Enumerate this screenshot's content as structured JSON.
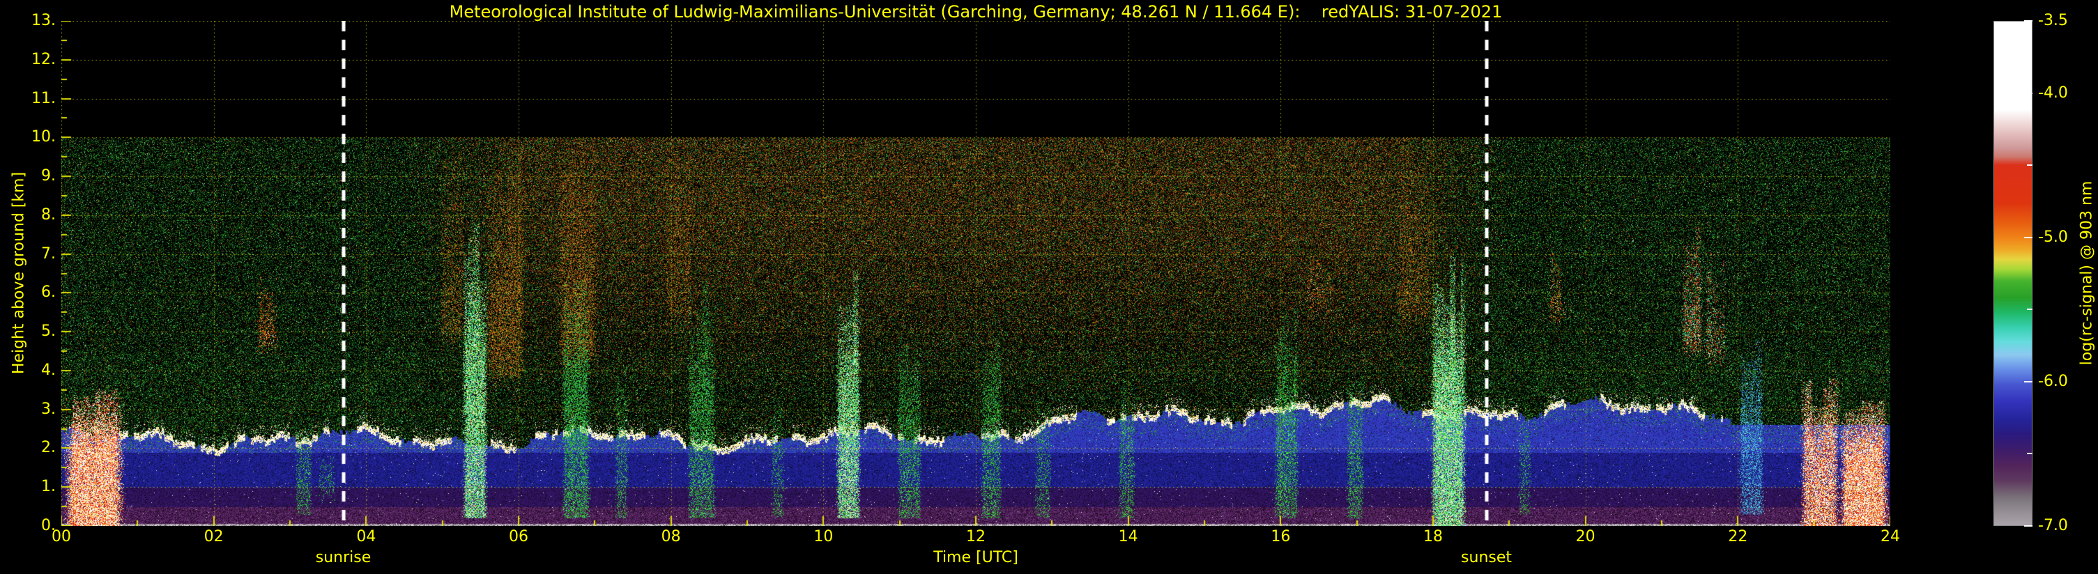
{
  "figure": {
    "kind": "lidar time-height quicklook",
    "background": "#000000",
    "text_color": "#ffff00",
    "grid_color": "#d6d600",
    "sun_line_color": "#ffffff"
  },
  "chart_data": {
    "type": "heatmap",
    "title": "Meteorological Institute of Ludwig-Maximilians-Universität (Garching, Germany; 48.261 N / 11.664 E):    redYALIS: 31-07-2021",
    "instrument": "redYALIS",
    "date": "31-07-2021",
    "site": "Garching, Germany; 48.261 N / 11.664 E",
    "xlabel": "Time [UTC]",
    "ylabel": "Height above ground [km]",
    "xlim": [
      0,
      24
    ],
    "ylim": [
      0,
      13
    ],
    "data_extent": {
      "time_utc_hours": [
        0,
        24
      ],
      "height_km": [
        0,
        10
      ]
    },
    "x_ticks": {
      "major_interval_hours": 2,
      "labels": [
        "00",
        "02",
        "04",
        "06",
        "08",
        "10",
        "12",
        "14",
        "16",
        "18",
        "20",
        "22",
        "24"
      ]
    },
    "y_ticks": {
      "major_interval_km": 1,
      "labels": [
        "0.",
        "1.",
        "2.",
        "3.",
        "4.",
        "5.",
        "6.",
        "7.",
        "8.",
        "9.",
        "10.",
        "11.",
        "12.",
        "13."
      ]
    },
    "grid": {
      "style": "dotted",
      "on": true
    },
    "annotations": [
      {
        "type": "vline",
        "label": "sunrise",
        "x_utc": 3.7,
        "style": "white dashed"
      },
      {
        "type": "vline",
        "label": "sunset",
        "x_utc": 18.7,
        "style": "white dashed"
      }
    ],
    "colorbar": {
      "label": "log(rc-signal) @ 903 nm",
      "range": [
        -7.0,
        -3.5
      ],
      "tick_values": [
        -3.5,
        -4.0,
        -5.0,
        -6.0,
        -7.0
      ],
      "tick_labels": [
        "-3.5",
        "-4.0",
        "-5.0",
        "-6.0",
        "-7.0"
      ],
      "minor_tick_values": [
        -4.5,
        -5.5,
        -6.5
      ],
      "stops": [
        [
          0.0,
          "#ffffff"
        ],
        [
          0.175,
          "#ffffff"
        ],
        [
          0.2,
          "#f2dcdc"
        ],
        [
          0.225,
          "#e2baba"
        ],
        [
          0.25,
          "#d09a9a"
        ],
        [
          0.268,
          "#cc7a72"
        ],
        [
          0.285,
          "#dc3018"
        ],
        [
          0.36,
          "#de3410"
        ],
        [
          0.4,
          "#e85e10"
        ],
        [
          0.43,
          "#f08418"
        ],
        [
          0.455,
          "#eead28"
        ],
        [
          0.472,
          "#e6d640"
        ],
        [
          0.492,
          "#a6d838"
        ],
        [
          0.515,
          "#46b42e"
        ],
        [
          0.548,
          "#28a028"
        ],
        [
          0.578,
          "#1fb868"
        ],
        [
          0.608,
          "#38d0b0"
        ],
        [
          0.635,
          "#64dcdc"
        ],
        [
          0.662,
          "#8cc8f0"
        ],
        [
          0.69,
          "#6890e8"
        ],
        [
          0.72,
          "#4858d0"
        ],
        [
          0.755,
          "#3232bc"
        ],
        [
          0.79,
          "#24249a"
        ],
        [
          0.82,
          "#2a1a7e"
        ],
        [
          0.852,
          "#3e1c6a"
        ],
        [
          0.882,
          "#52245c"
        ],
        [
          0.912,
          "#5e3a5e"
        ],
        [
          0.945,
          "#7a727a"
        ],
        [
          0.975,
          "#969096"
        ],
        [
          1.0,
          "#aaa2aa"
        ]
      ]
    },
    "boundary_layer": {
      "night_top_km": 2.25,
      "day_top_km": 3.0,
      "growth_window_utc": [
        10.0,
        16.5
      ],
      "top_edge": "bright white/yellow aerosol line"
    },
    "features": [
      "Aerosol-laden boundary layer below ~2-3 km with bright white top edge through most of the day",
      "Very strong low-level echoes (white/red, clouds/precipitation) below ~3.5 km near 00:00-00:50 and 22:50-24:00 UTC",
      "Green/cyan convective and cloud streaks between ~05:00 and ~18:30 UTC reaching 4-7 km",
      "Bright cloud/precipitation column around 18:00-18:30 UTC up to ~6 km",
      "Enhanced daytime solar background noise (orange/brown speckle) in the free troposphere between sunrise and sunset",
      "Mid-level cloud wisps near 02:40 (~5 km), 16:30 (~6 km) and 21:20-21:50 UTC (4-7 km)",
      "No data displayed above 10 km (black region up to 13 km axis limit)"
    ],
    "render": {
      "events": [
        {
          "t": [
            0.0,
            0.85
          ],
          "h": [
            0.0,
            3.1
          ],
          "kind": "strong_echo",
          "i": 1.0
        },
        {
          "t": [
            22.8,
            23.35
          ],
          "h": [
            0.0,
            3.6
          ],
          "kind": "strong_echo",
          "i": 0.85
        },
        {
          "t": [
            23.3,
            24.0
          ],
          "h": [
            0.0,
            3.4
          ],
          "kind": "strong_echo",
          "i": 1.0
        },
        {
          "t": [
            3.05,
            3.3
          ],
          "h": [
            0.3,
            2.4
          ],
          "kind": "green_column",
          "i": 0.5
        },
        {
          "t": [
            3.35,
            3.6
          ],
          "h": [
            0.5,
            2.0
          ],
          "kind": "green_column",
          "i": 0.45
        },
        {
          "t": [
            5.25,
            5.6
          ],
          "h": [
            0.2,
            7.0
          ],
          "kind": "bright_column",
          "i": 0.9
        },
        {
          "t": [
            6.55,
            6.95
          ],
          "h": [
            0.2,
            6.0
          ],
          "kind": "green_column",
          "i": 0.8
        },
        {
          "t": [
            7.25,
            7.45
          ],
          "h": [
            0.2,
            4.0
          ],
          "kind": "green_column",
          "i": 0.5
        },
        {
          "t": [
            8.2,
            8.6
          ],
          "h": [
            0.2,
            5.5
          ],
          "kind": "green_column",
          "i": 0.7
        },
        {
          "t": [
            9.3,
            9.5
          ],
          "h": [
            0.2,
            3.0
          ],
          "kind": "green_column",
          "i": 0.4
        },
        {
          "t": [
            10.15,
            10.5
          ],
          "h": [
            0.2,
            6.0
          ],
          "kind": "bright_column",
          "i": 0.85
        },
        {
          "t": [
            10.95,
            11.3
          ],
          "h": [
            0.2,
            4.5
          ],
          "kind": "green_column",
          "i": 0.6
        },
        {
          "t": [
            12.05,
            12.35
          ],
          "h": [
            0.2,
            4.5
          ],
          "kind": "green_column",
          "i": 0.6
        },
        {
          "t": [
            12.75,
            13.0
          ],
          "h": [
            0.2,
            3.0
          ],
          "kind": "green_column",
          "i": 0.4
        },
        {
          "t": [
            13.85,
            14.1
          ],
          "h": [
            0.2,
            3.5
          ],
          "kind": "green_column",
          "i": 0.5
        },
        {
          "t": [
            15.9,
            16.25
          ],
          "h": [
            0.2,
            5.0
          ],
          "kind": "green_column",
          "i": 0.7
        },
        {
          "t": [
            16.85,
            17.1
          ],
          "h": [
            0.2,
            4.0
          ],
          "kind": "green_column",
          "i": 0.6
        },
        {
          "t": [
            17.95,
            18.45
          ],
          "h": [
            0.0,
            6.2
          ],
          "kind": "bright_column",
          "i": 1.0
        },
        {
          "t": [
            19.1,
            19.3
          ],
          "h": [
            0.3,
            3.0
          ],
          "kind": "green_column",
          "i": 0.4
        },
        {
          "t": [
            22.0,
            22.35
          ],
          "h": [
            0.3,
            4.2
          ],
          "kind": "cyan_column",
          "i": 0.7
        },
        {
          "t": [
            4.95,
            5.3
          ],
          "h": [
            4.5,
            10.0
          ],
          "kind": "orange_column",
          "i": 0.5
        },
        {
          "t": [
            5.55,
            6.1
          ],
          "h": [
            3.5,
            10.0
          ],
          "kind": "orange_column",
          "i": 0.8
        },
        {
          "t": [
            6.5,
            7.05
          ],
          "h": [
            4.0,
            10.0
          ],
          "kind": "orange_column",
          "i": 0.7
        },
        {
          "t": [
            7.9,
            8.3
          ],
          "h": [
            5.0,
            10.0
          ],
          "kind": "orange_column",
          "i": 0.4
        },
        {
          "t": [
            17.5,
            18.0
          ],
          "h": [
            5.0,
            10.0
          ],
          "kind": "orange_column",
          "i": 0.5
        },
        {
          "t": [
            2.55,
            2.85
          ],
          "h": [
            4.3,
            5.6
          ],
          "kind": "warm_wisp",
          "i": 0.7
        },
        {
          "t": [
            16.3,
            16.7
          ],
          "h": [
            5.3,
            6.6
          ],
          "kind": "warm_wisp",
          "i": 0.6
        },
        {
          "t": [
            19.4,
            19.75
          ],
          "h": [
            5.0,
            6.3
          ],
          "kind": "warm_wisp",
          "i": 0.5
        },
        {
          "t": [
            21.25,
            21.55
          ],
          "h": [
            4.2,
            7.0
          ],
          "kind": "mixed_red",
          "i": 0.8
        },
        {
          "t": [
            21.55,
            21.85
          ],
          "h": [
            4.0,
            6.3
          ],
          "kind": "mixed_red",
          "i": 0.7
        }
      ],
      "palettes": {
        "green_speckle": [
          [
            0.34,
            "#0b370b"
          ],
          [
            0.26,
            "#145214"
          ],
          [
            0.18,
            "#1d701d"
          ],
          [
            0.12,
            "#2a962a"
          ],
          [
            0.07,
            "#3fc43f"
          ],
          [
            0.03,
            "#7dec7d"
          ]
        ],
        "warm_speckle": [
          [
            0.3,
            "#381a06"
          ],
          [
            0.25,
            "#5e2c0a"
          ],
          [
            0.2,
            "#8a4410"
          ],
          [
            0.14,
            "#b46418"
          ],
          [
            0.07,
            "#d88820"
          ],
          [
            0.04,
            "#e04010"
          ]
        ],
        "bright_column": [
          [
            0.22,
            "#34cc34"
          ],
          [
            0.18,
            "#64e464"
          ],
          [
            0.2,
            "#3cd4c4"
          ],
          [
            0.1,
            "#ffffff"
          ],
          [
            0.14,
            "#bcf4bc"
          ],
          [
            0.16,
            "#e8e87c"
          ]
        ],
        "green_column": [
          [
            0.3,
            "#1e9a1e"
          ],
          [
            0.22,
            "#2cba2c"
          ],
          [
            0.18,
            "#44d444"
          ],
          [
            0.12,
            "#68e468"
          ],
          [
            0.1,
            "#2cb486"
          ],
          [
            0.08,
            "#44ccc0"
          ]
        ],
        "cyan_column": [
          [
            0.25,
            "#38a8d0"
          ],
          [
            0.22,
            "#50c8e0"
          ],
          [
            0.18,
            "#2878c8"
          ],
          [
            0.18,
            "#68e0e0"
          ],
          [
            0.17,
            "#3048c0"
          ]
        ],
        "orange_column": [
          [
            0.3,
            "#904c10"
          ],
          [
            0.25,
            "#b86a16"
          ],
          [
            0.2,
            "#d8881e"
          ],
          [
            0.15,
            "#eca62c"
          ],
          [
            0.1,
            "#743408"
          ]
        ],
        "warm_wisp": [
          [
            0.3,
            "#d84c10"
          ],
          [
            0.25,
            "#ec7418"
          ],
          [
            0.2,
            "#f89c28"
          ],
          [
            0.15,
            "#b02c08"
          ],
          [
            0.1,
            "#ffffff"
          ]
        ],
        "strong_echo": [
          [
            0.28,
            "#ffffff"
          ],
          [
            0.12,
            "#ffe8c0"
          ],
          [
            0.24,
            "#dc2810"
          ],
          [
            0.14,
            "#ff5420"
          ],
          [
            0.12,
            "#ffcc40"
          ],
          [
            0.1,
            "#f4f49c"
          ]
        ],
        "mixed_red": [
          [
            0.33,
            "#dc3018"
          ],
          [
            0.15,
            "#ff6030"
          ],
          [
            0.2,
            "#30b850"
          ],
          [
            0.14,
            "#44d0c4"
          ],
          [
            0.09,
            "#ffffff"
          ],
          [
            0.09,
            "#ecdc5c"
          ]
        ],
        "bl_top_line": [
          [
            0.5,
            "#ffffff"
          ],
          [
            0.2,
            "#ffffc4"
          ],
          [
            0.15,
            "#fce470"
          ],
          [
            0.08,
            "#fcc044"
          ],
          [
            0.07,
            "#e8e8e8"
          ]
        ],
        "ground_gray": [
          [
            0.3,
            "#b4acb4"
          ],
          [
            0.3,
            "#d4ccd4"
          ],
          [
            0.2,
            "#8c808c"
          ],
          [
            0.2,
            "#645c64"
          ]
        ],
        "purple_low": [
          [
            0.25,
            "#481a54"
          ],
          [
            0.25,
            "#5a2866"
          ],
          [
            0.2,
            "#381040"
          ],
          [
            0.2,
            "#6c3878"
          ],
          [
            0.1,
            "#280828"
          ]
        ],
        "purple_mid": [
          [
            0.3,
            "#32105e"
          ],
          [
            0.3,
            "#3a1a6e"
          ],
          [
            0.2,
            "#281254"
          ],
          [
            0.2,
            "#221046"
          ]
        ],
        "blue_low": [
          [
            0.3,
            "#1c1c86"
          ],
          [
            0.25,
            "#22229e"
          ],
          [
            0.25,
            "#18186e"
          ],
          [
            0.2,
            "#2828ac"
          ]
        ],
        "blue_high": [
          [
            0.3,
            "#2e2eb2"
          ],
          [
            0.25,
            "#3a3ac6"
          ],
          [
            0.25,
            "#2850be"
          ],
          [
            0.2,
            "#3232b8"
          ]
        ]
      }
    }
  }
}
